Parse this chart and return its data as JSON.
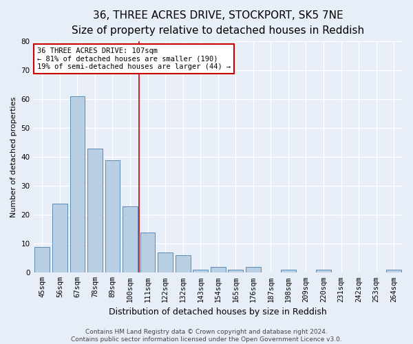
{
  "title": "36, THREE ACRES DRIVE, STOCKPORT, SK5 7NE",
  "subtitle": "Size of property relative to detached houses in Reddish",
  "xlabel": "Distribution of detached houses by size in Reddish",
  "ylabel": "Number of detached properties",
  "bar_labels": [
    "45sqm",
    "56sqm",
    "67sqm",
    "78sqm",
    "89sqm",
    "100sqm",
    "111sqm",
    "122sqm",
    "132sqm",
    "143sqm",
    "154sqm",
    "165sqm",
    "176sqm",
    "187sqm",
    "198sqm",
    "209sqm",
    "220sqm",
    "231sqm",
    "242sqm",
    "253sqm",
    "264sqm"
  ],
  "bar_values": [
    9,
    24,
    61,
    43,
    39,
    23,
    14,
    7,
    6,
    1,
    2,
    1,
    2,
    0,
    1,
    0,
    1,
    0,
    0,
    0,
    1
  ],
  "bar_color": "#b8cfe4",
  "bar_edge_color": "#5a8ab5",
  "background_color": "#e8eef7",
  "grid_color": "#ffffff",
  "vline_x": 5.5,
  "vline_color": "#cc0000",
  "annotation_line1": "36 THREE ACRES DRIVE: 107sqm",
  "annotation_line2": "← 81% of detached houses are smaller (190)",
  "annotation_line3": "19% of semi-detached houses are larger (44) →",
  "annotation_box_color": "#cc0000",
  "annotation_box_fill": "#ffffff",
  "ylim": [
    0,
    80
  ],
  "yticks": [
    0,
    10,
    20,
    30,
    40,
    50,
    60,
    70,
    80
  ],
  "footer_text": "Contains HM Land Registry data © Crown copyright and database right 2024.\nContains public sector information licensed under the Open Government Licence v3.0.",
  "title_fontsize": 11,
  "subtitle_fontsize": 9.5,
  "xlabel_fontsize": 9,
  "ylabel_fontsize": 8,
  "tick_fontsize": 7.5,
  "annotation_fontsize": 7.5,
  "footer_fontsize": 6.5
}
